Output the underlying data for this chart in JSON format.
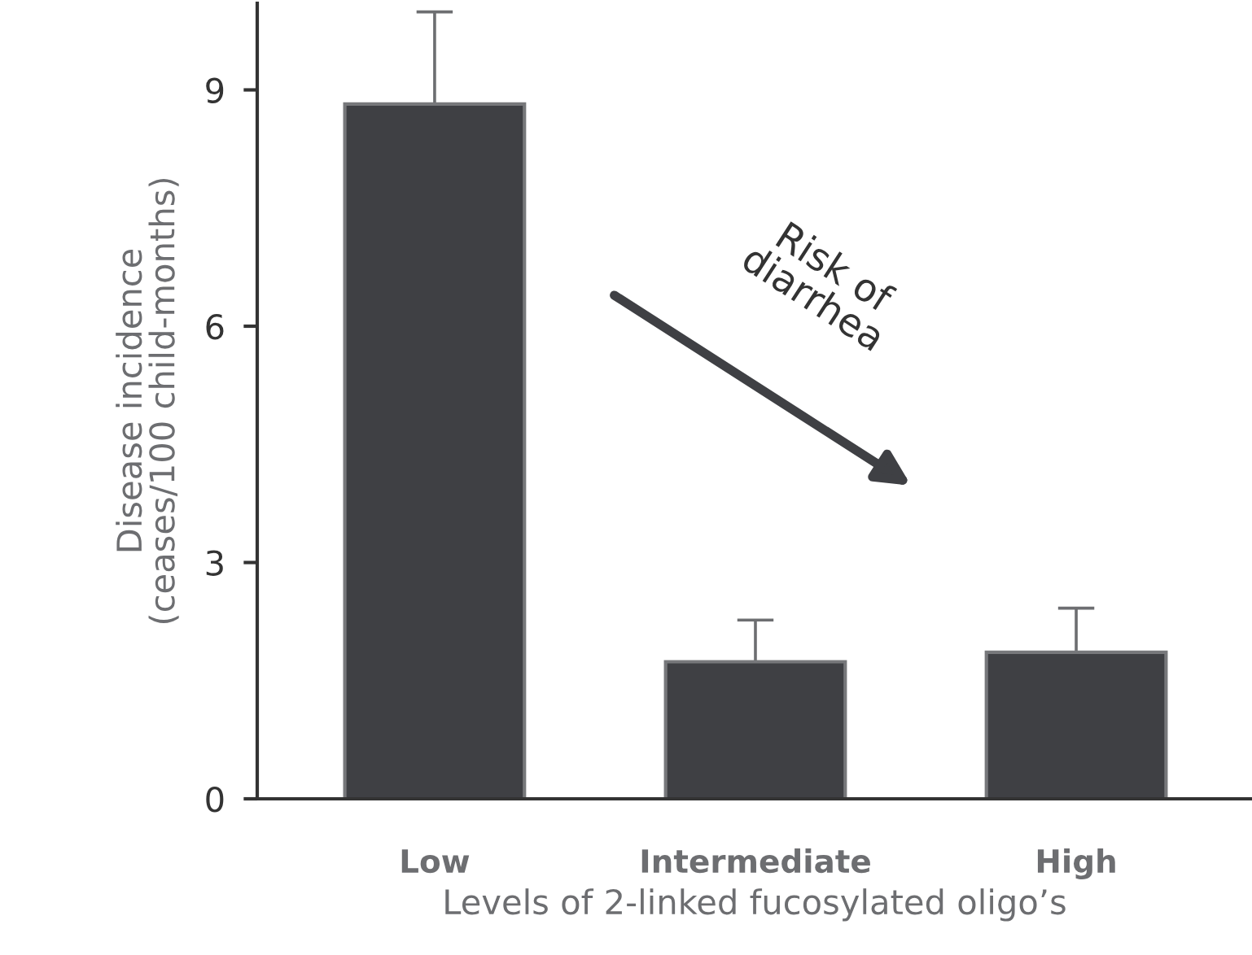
{
  "chart_data": {
    "type": "bar",
    "categories": [
      "Low",
      "Intermediate",
      "High"
    ],
    "values": [
      8.82,
      1.74,
      1.86
    ],
    "errors": [
      1.17,
      0.53,
      0.56
    ],
    "color": "#3f4044",
    "xlabel": "Levels of 2-linked fucosylated oligo’s",
    "ylabel": "Disease incidence\n(ceases/100 child-months)",
    "ylim": [
      0,
      10.1
    ],
    "yticks": [
      0,
      3,
      6,
      9
    ],
    "annotations": [
      "Risk of\ndiarrhea"
    ],
    "grid": false,
    "legend": false
  }
}
